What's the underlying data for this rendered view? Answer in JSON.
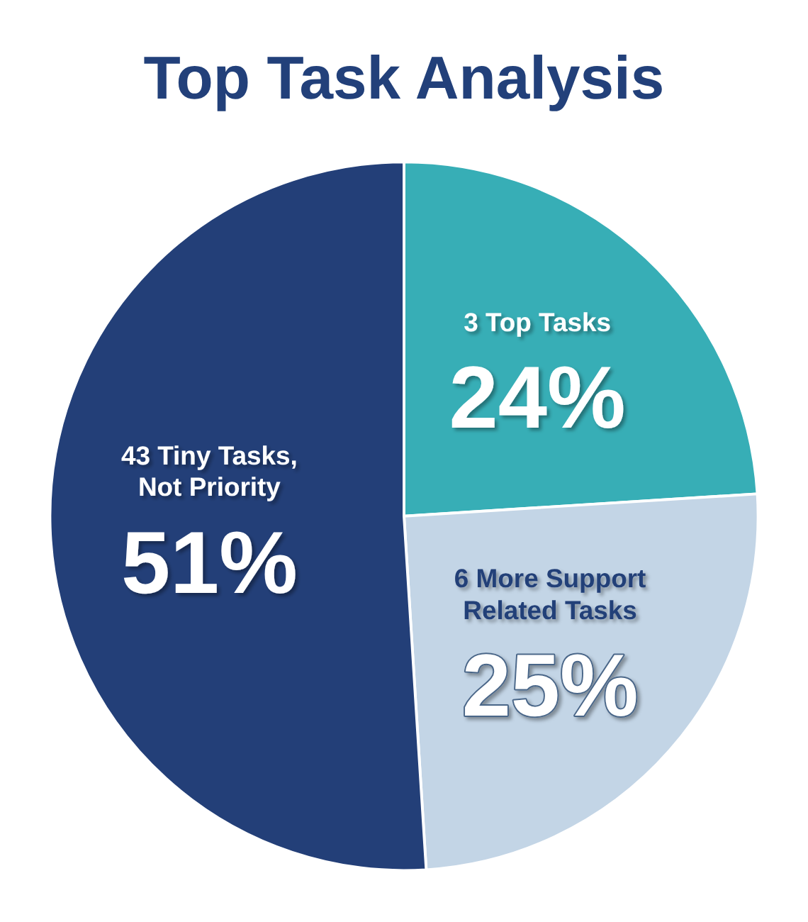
{
  "chart_data": {
    "type": "pie",
    "title": "Top Task Analysis",
    "categories": [
      "3 Top Tasks",
      "6 More Support Related Tasks",
      "43 Tiny Tasks, Not Priority"
    ],
    "values": [
      24,
      25,
      51
    ],
    "colors": [
      "#37aeb6",
      "#c3d5e6",
      "#233f78"
    ],
    "value_labels": [
      "24%",
      "25%",
      "51%"
    ],
    "legend": false
  }
}
